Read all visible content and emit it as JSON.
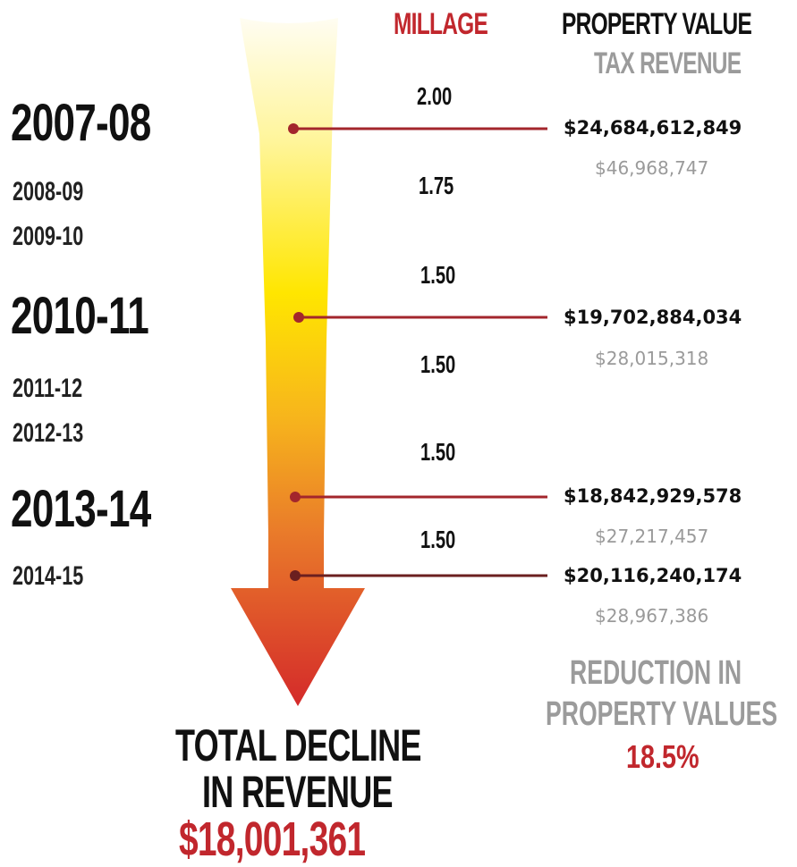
{
  "headers": {
    "millage": "MILLAGE",
    "property_value": "PROPERTY VALUE",
    "tax_revenue": "TAX REVENUE"
  },
  "years": [
    {
      "label": "2007-08",
      "major": true
    },
    {
      "label": "2008-09",
      "major": false
    },
    {
      "label": "2009-10",
      "major": false
    },
    {
      "label": "2010-11",
      "major": true
    },
    {
      "label": "2011-12",
      "major": false
    },
    {
      "label": "2012-13",
      "major": false
    },
    {
      "label": "2013-14",
      "major": true
    },
    {
      "label": "2014-15",
      "major": false
    }
  ],
  "millage_values": [
    "2.00",
    "1.75",
    "1.50",
    "1.50",
    "1.50",
    "1.50"
  ],
  "chart_data": {
    "type": "table",
    "rows": [
      {
        "year": "2007-08",
        "property_value": "$24,684,612,849",
        "tax_revenue": "$46,968,747"
      },
      {
        "year": "2010-11",
        "property_value": "$19,702,884,034",
        "tax_revenue": "$28,015,318"
      },
      {
        "year": "2013-14",
        "property_value": "$18,842,929,578",
        "tax_revenue": "$27,217,457"
      },
      {
        "year": "2014-15",
        "property_value": "$20,116,240,174",
        "tax_revenue": "$28,967,386"
      }
    ],
    "millage": [
      "2.00",
      "1.75",
      "1.50",
      "1.50",
      "1.50",
      "1.50"
    ]
  },
  "reduction": {
    "line1": "REDUCTION IN",
    "line2": "PROPERTY VALUES",
    "percent": "18.5%"
  },
  "total": {
    "line1": "TOTAL DECLINE",
    "line2": "IN REVENUE",
    "amount": "$18,001,361"
  },
  "colors": {
    "accent_red": "#c1272d",
    "leader_line": "#a3262c",
    "gray_text": "#9b9b9b",
    "arrow_top": "#fffbe6",
    "arrow_mid": "#ffe600",
    "arrow_bottom": "#d8272d"
  }
}
